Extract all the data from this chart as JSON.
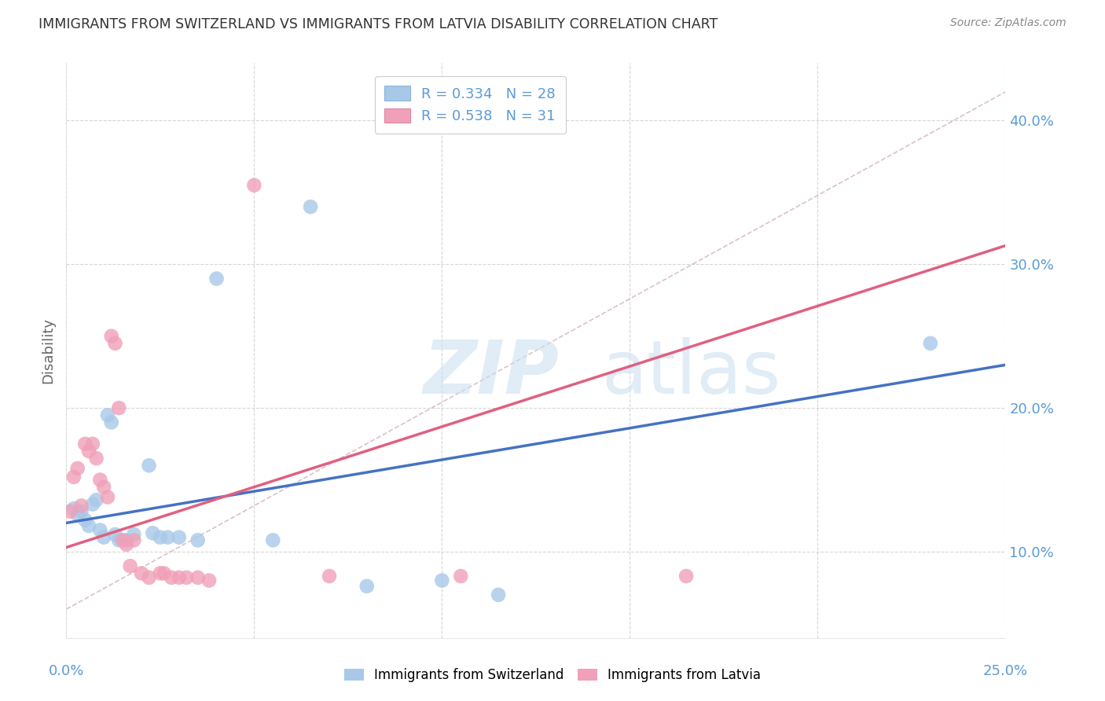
{
  "title": "IMMIGRANTS FROM SWITZERLAND VS IMMIGRANTS FROM LATVIA DISABILITY CORRELATION CHART",
  "source": "Source: ZipAtlas.com",
  "ylabel": "Disability",
  "ytick_labels": [
    "10.0%",
    "20.0%",
    "30.0%",
    "40.0%"
  ],
  "ytick_values": [
    0.1,
    0.2,
    0.3,
    0.4
  ],
  "xlim": [
    0.0,
    0.25
  ],
  "ylim": [
    0.04,
    0.44
  ],
  "watermark_zip": "ZIP",
  "watermark_atlas": "atlas",
  "legend_entries": [
    {
      "label": "R = 0.334   N = 28",
      "color": "#a8c8e8"
    },
    {
      "label": "R = 0.538   N = 31",
      "color": "#f0a0b8"
    }
  ],
  "swiss_scatter": [
    [
      0.002,
      0.13
    ],
    [
      0.003,
      0.126
    ],
    [
      0.004,
      0.128
    ],
    [
      0.005,
      0.122
    ],
    [
      0.006,
      0.118
    ],
    [
      0.007,
      0.133
    ],
    [
      0.008,
      0.136
    ],
    [
      0.009,
      0.115
    ],
    [
      0.01,
      0.11
    ],
    [
      0.011,
      0.195
    ],
    [
      0.012,
      0.19
    ],
    [
      0.013,
      0.112
    ],
    [
      0.014,
      0.108
    ],
    [
      0.016,
      0.108
    ],
    [
      0.018,
      0.112
    ],
    [
      0.022,
      0.16
    ],
    [
      0.023,
      0.113
    ],
    [
      0.025,
      0.11
    ],
    [
      0.027,
      0.11
    ],
    [
      0.03,
      0.11
    ],
    [
      0.035,
      0.108
    ],
    [
      0.04,
      0.29
    ],
    [
      0.055,
      0.108
    ],
    [
      0.065,
      0.34
    ],
    [
      0.08,
      0.076
    ],
    [
      0.1,
      0.08
    ],
    [
      0.115,
      0.07
    ],
    [
      0.23,
      0.245
    ]
  ],
  "latvia_scatter": [
    [
      0.001,
      0.128
    ],
    [
      0.002,
      0.152
    ],
    [
      0.003,
      0.158
    ],
    [
      0.004,
      0.132
    ],
    [
      0.005,
      0.175
    ],
    [
      0.006,
      0.17
    ],
    [
      0.007,
      0.175
    ],
    [
      0.008,
      0.165
    ],
    [
      0.009,
      0.15
    ],
    [
      0.01,
      0.145
    ],
    [
      0.011,
      0.138
    ],
    [
      0.012,
      0.25
    ],
    [
      0.013,
      0.245
    ],
    [
      0.014,
      0.2
    ],
    [
      0.015,
      0.108
    ],
    [
      0.016,
      0.105
    ],
    [
      0.017,
      0.09
    ],
    [
      0.018,
      0.108
    ],
    [
      0.02,
      0.085
    ],
    [
      0.022,
      0.082
    ],
    [
      0.025,
      0.085
    ],
    [
      0.026,
      0.085
    ],
    [
      0.028,
      0.082
    ],
    [
      0.03,
      0.082
    ],
    [
      0.032,
      0.082
    ],
    [
      0.035,
      0.082
    ],
    [
      0.038,
      0.08
    ],
    [
      0.05,
      0.355
    ],
    [
      0.07,
      0.083
    ],
    [
      0.105,
      0.083
    ],
    [
      0.165,
      0.083
    ]
  ],
  "swiss_color": "#a8c8e8",
  "latvia_color": "#f0a0b8",
  "regression_swiss_intercept": 0.12,
  "regression_swiss_slope": 0.44,
  "regression_latvia_intercept": 0.103,
  "regression_latvia_slope": 0.84,
  "refline_color": "#d0a0b0",
  "background_color": "#ffffff",
  "grid_color": "#cccccc",
  "title_color": "#333333",
  "tick_color": "#5b9bd5"
}
